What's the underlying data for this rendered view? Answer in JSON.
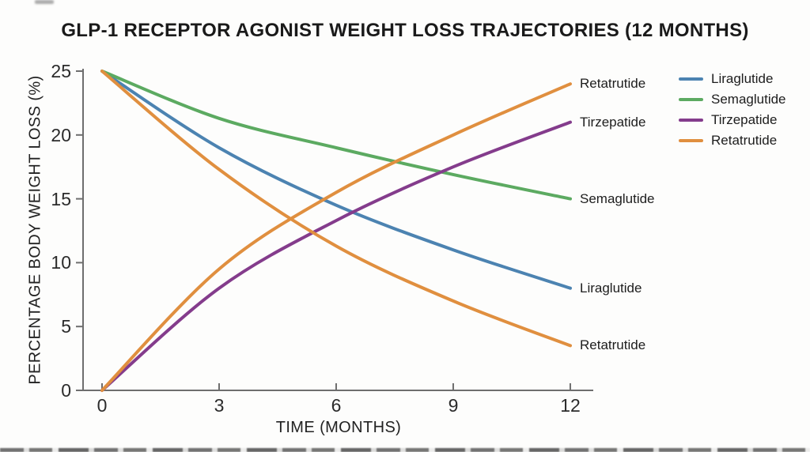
{
  "title": "GLP-1 RECEPTOR AGONIST WEIGHT LOSS TRAJECTORIES (12 MONTHS)",
  "chart_data": {
    "type": "line",
    "title": "GLP-1 RECEPTOR AGONIST WEIGHT LOSS TRAJECTORIES (12 MONTHS)",
    "xlabel": "TIME (MONTHS)",
    "ylabel": "PERCENTAGE BODY WEIGHT LOSS (%)",
    "x": [
      0,
      3,
      6,
      9,
      12
    ],
    "x_ticks": [
      0,
      3,
      6,
      9,
      12
    ],
    "y_ticks": [
      0,
      5,
      10,
      15,
      20,
      25
    ],
    "xlim": [
      0,
      12
    ],
    "ylim": [
      0,
      25
    ],
    "grid": false,
    "legend_position": "outside-top-right",
    "series": [
      {
        "name": "Liraglutide",
        "color": "#4c83b1",
        "values": [
          25,
          19,
          14.5,
          11,
          8
        ],
        "end_label": "Liraglutide",
        "in_legend": true
      },
      {
        "name": "Semaglutide",
        "color": "#5caa61",
        "values": [
          25,
          21.3,
          19,
          16.9,
          15
        ],
        "end_label": "Semaglutide",
        "in_legend": true
      },
      {
        "name": "Tirzepatide",
        "color": "#843c8c",
        "values": [
          0,
          8,
          13.3,
          17.5,
          21
        ],
        "end_label": "Tirzepatide",
        "in_legend": true
      },
      {
        "name": "Retatrutide",
        "color": "#e08f3f",
        "values": [
          0,
          9.5,
          15.5,
          20,
          24
        ],
        "end_label": "Retatrutide",
        "in_legend": true
      },
      {
        "name": "Retatrutide",
        "color": "#e08f3f",
        "values": [
          25,
          17.3,
          11.3,
          7,
          3.5
        ],
        "end_label": "Retatrutide",
        "in_legend": false
      }
    ],
    "legend": [
      "Liraglutide",
      "Semaglutide",
      "Tirzepatide",
      "Retatrutide"
    ],
    "axis_color": "#6e6e6e"
  }
}
